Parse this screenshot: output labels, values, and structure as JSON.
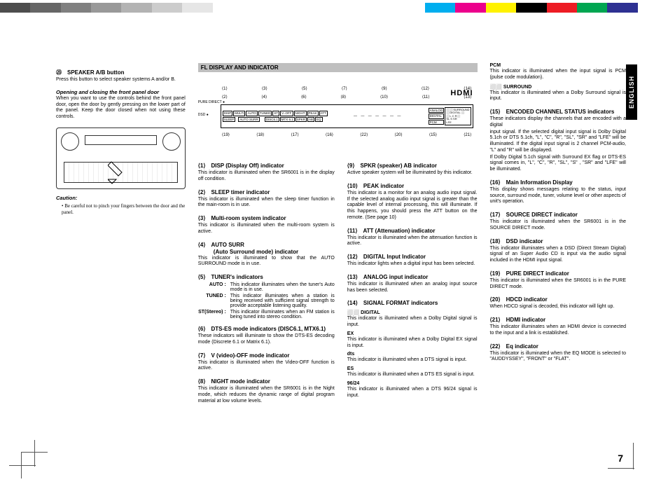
{
  "color_bar_left": [
    "#4d4d4d",
    "#666666",
    "#808080",
    "#999999",
    "#b3b3b3",
    "#cccccc",
    "#e6e6e6",
    "#ffffff"
  ],
  "color_bar_right": [
    "#00aeef",
    "#ec008c",
    "#fff200",
    "#000000",
    "#ed1c24",
    "#00a651",
    "#2e3192",
    "#ffffff"
  ],
  "lang_tab": "ENGLISH",
  "page_number": "7",
  "col1": {
    "h23": "㉓　SPEAKER A/B button",
    "h23_body": "Press this button to select speaker systems A and/or B.",
    "panel_title": "Opening and closing the front panel door",
    "panel_body": "When you want to use the controls behind the front panel door, open the door by gently pressing on the lower part of the panel. Keep the door closed when not using these controls.",
    "caution_label": "Caution:",
    "caution_body": "• Be careful not to pinch your fingers between the door and the panel."
  },
  "section_bar": "FL DISPLAY AND INDICATOR",
  "hdmi": "HDMI",
  "diagram": {
    "pure_direct": "PURE DIRECT ●",
    "dsd": "DSD ●",
    "row1": [
      "DISP",
      "MULTI",
      "AUTO",
      "TUNED",
      "ST",
      "V.-OFF",
      "NIGHT",
      "PEAK",
      "ATT"
    ],
    "row2": [
      "SLEEP",
      "",
      "AUTO SURR",
      "",
      "",
      "DISC6.1",
      "MTX 6.1",
      "SPKR",
      "AB",
      "EQ"
    ],
    "right_col": [
      "ANALOG",
      "DIGITAL",
      "PCM"
    ],
    "right_box": [
      "⬜DIGITAL ⬜",
      "⬜L C R⬜",
      "SL  S  SR",
      "LFE"
    ],
    "surround": "⬜⬜SURROUND",
    "top_nums": [
      "⟨1⟩",
      "⟨3⟩",
      "⟨5⟩",
      "⟨7⟩",
      "⟨9⟩",
      "⟨12⟩",
      "⟨14⟩"
    ],
    "top_nums2": [
      "⟨2⟩",
      "⟨4⟩",
      "⟨6⟩",
      "⟨8⟩",
      "⟨10⟩",
      "⟨11⟩",
      "⟨13⟩"
    ],
    "bot_nums": [
      "⟨19⟩",
      "⟨18⟩",
      "⟨17⟩",
      "⟨16⟩",
      "⟨22⟩",
      "⟨20⟩",
      "⟨15⟩",
      "⟨21⟩"
    ]
  },
  "col2": {
    "i1_h": "⟨1⟩　DISP (Display Off) indicator",
    "i1_b": "This indicator is illuminated when the SR6001 is in the display off condition.",
    "i2_h": "⟨2⟩　SLEEP timer indicator",
    "i2_b": "This indicator is illuminated when the sleep timer function in the main-room is in use.",
    "i3_h": "⟨3⟩　Multi-room system indicator",
    "i3_b": "This indicator is illuminated when the multi-room system is active.",
    "i4_h": "⟨4⟩　AUTO SURR",
    "i4_h2": "(Auto Surround mode) indicator",
    "i4_b": "This indicator is illuminated to show that the AUTO SURROUND mode is in use.",
    "i5_h": "⟨5⟩　TUNER's indicators",
    "i5_auto_l": "AUTO :",
    "i5_auto_b": "This indicator illuminates when the tuner's Auto mode is in use.",
    "i5_tuned_l": "TUNED :",
    "i5_tuned_b": "This indicator illuminates when a station is being received with sufficient signal strength to provide acceptable listening quality.",
    "i5_st_l": "ST(Stereo) :",
    "i5_st_b": "This indicator illuminates when an FM station is being tuned into stereo condition.",
    "i6_h": "⟨6⟩　DTS-ES mode indicators (DISC6.1, MTX6.1)",
    "i6_b": "These indicators will illuminate to show the DTS-ES decoding mode (Discrete 6.1 or Matrix 6.1).",
    "i7_h": "⟨7⟩　V (video)-OFF mode indicator",
    "i7_b": "This indicator is illuminated when the Video-OFF function is active.",
    "i8_h": "⟨8⟩　NIGHT mode indicator",
    "i8_b": "This indicator is illuminated when the SR6001 is in the Night mode, which reduces the dynamic range of digital program material at low volume levels."
  },
  "col3": {
    "i9_h": "⟨9⟩　SPKR (speaker) AB indicator",
    "i9_b": "Active speaker system will be illuminated by this indicator.",
    "i10_h": "⟨10⟩　PEAK indicator",
    "i10_b": "This indicator is a monitor for an analog audio input signal. If the selected analog audio input signal is greater than the capable level of internal processing, this will illuminate. If this happens, you should press the ATT button on the remote. (See page 10)",
    "i11_h": "⟨11⟩　ATT (Attenuation) indicator",
    "i11_b": "This indicator is illuminated when the attenuation function is active.",
    "i12_h": "⟨12⟩　DIGITAL Input Indicator",
    "i12_b": "This indicator lights when a digital input has been selected.",
    "i13_h": "⟨13⟩　ANALOG input indicator",
    "i13_b": "This indicator is illuminated when an analog input source has been selected.",
    "i14_h": "⟨14⟩　SIGNAL FORMAT indicators",
    "i14_dd_l": "⬜⬜ DIGITAL",
    "i14_dd_b": "This indicator is illuminated when a Dolby Digital signal is input.",
    "i14_ex_l": "EX",
    "i14_ex_b": "This indicator is illuminated when a Dolby Digital EX signal is input.",
    "i14_dts_l": "dts",
    "i14_dts_b": "This indicator is illuminated when a DTS signal is input.",
    "i14_es_l": "ES",
    "i14_es_b": "This indicator is illuminated when a DTS ES signal is input.",
    "i14_96_l": "96/24",
    "i14_96_b": "This indicator is illuminated when a DTS 96/24 signal is input."
  },
  "col4": {
    "pcm_l": "PCM",
    "pcm_b": "This indicator is illuminated when the input signal is PCM (pulse code modulation).",
    "surr_l": "⬜⬜ SURROUND",
    "surr_b": "This indicator is illuminated when a Dolby Surround signal is input.",
    "i15_h": "⟨15⟩　ENCODED CHANNEL STATUS indicators",
    "i15_b": "These indicators display the channels that are encoded with a digital",
    "i15_b2": "input signal. If the selected digital input signal is Dolby Digital 5.1ch or DTS 5.1ch, \"L\", \"C\", \"R\", \"SL\", \"SR\" and \"LFE\" will be illuminated. If the digital input signal is 2 channel PCM-audio, \"L\" and \"R\" will be displayed.",
    "i15_b3": "If Dolby Digital 5.1ch signal with Surround EX flag or DTS-ES signal comes in, \"L\", \"C\", \"R\", \"SL\", \"S\" , \"SR\" and \"LFE\" will be illuminated.",
    "i16_h": "⟨16⟩　Main Information Display",
    "i16_b": "This display shows messages relating to the status, input source, surround mode, tuner, volume level or other aspects of unit's operation.",
    "i17_h": "⟨17⟩　SOURCE DIRECT indicator",
    "i17_b": "This indicator is illuminated when the SR6001 is in the SOURCE DIRECT mode.",
    "i18_h": "⟨18⟩　DSD indicator",
    "i18_b": "This indicator illuminates when a DSD (Direct Stream Digital) signal of an Super Audio CD is input via the audio signal included in the HDMI input signal.",
    "i19_h": "⟨19⟩　PURE DIRECT indicator",
    "i19_b": "This indicator is illuminated when the SR6001 is in the PURE DIRECT mode.",
    "i20_h": "⟨20⟩　HDCD indicator",
    "i20_b": "When HDCD signal is decoded, this indicator will light up.",
    "i21_h": "⟨21⟩　HDMI indicator",
    "i21_b": "This indicator illuminates when an HDMI device is connected to the input and a link is established.",
    "i22_h": "⟨22⟩　Eq indicator",
    "i22_b": "This indicator is illuminated when the EQ MODE is selected to \"AUDDYSSEY\", \"FRONT\" or \"FLAT\"."
  }
}
